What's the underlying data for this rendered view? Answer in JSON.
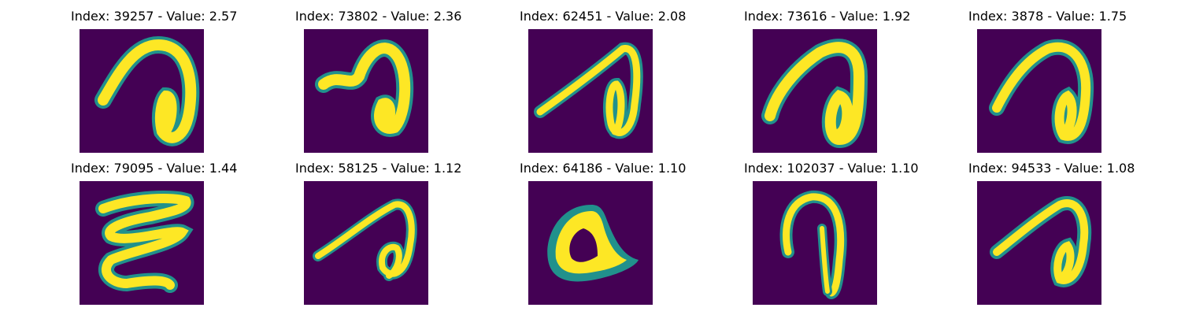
{
  "figure": {
    "colormap": [
      "#440154",
      "#21918c",
      "#fde725"
    ],
    "panels": [
      {
        "title": "Index: 39257 - Value: 2.57",
        "glyph": "hook-loop-a"
      },
      {
        "title": "Index: 73802 - Value: 2.36",
        "glyph": "hook-loop-b"
      },
      {
        "title": "Index: 62451 - Value: 2.08",
        "glyph": "long-stroke-loop"
      },
      {
        "title": "Index: 73616 - Value: 1.92",
        "glyph": "hook-loop-c"
      },
      {
        "title": "Index: 3878 - Value: 1.75",
        "glyph": "hook-loop-d"
      },
      {
        "title": "Index: 79095 - Value: 1.44",
        "glyph": "epsilon-shape"
      },
      {
        "title": "Index: 58125 - Value: 1.12",
        "glyph": "thin-stroke-loop"
      },
      {
        "title": "Index: 64186 - Value: 1.10",
        "glyph": "round-blob"
      },
      {
        "title": "Index: 102037 - Value: 1.10",
        "glyph": "narrow-hook"
      },
      {
        "title": "Index: 94533 - Value: 1.08",
        "glyph": "hook-loop-e"
      }
    ]
  }
}
